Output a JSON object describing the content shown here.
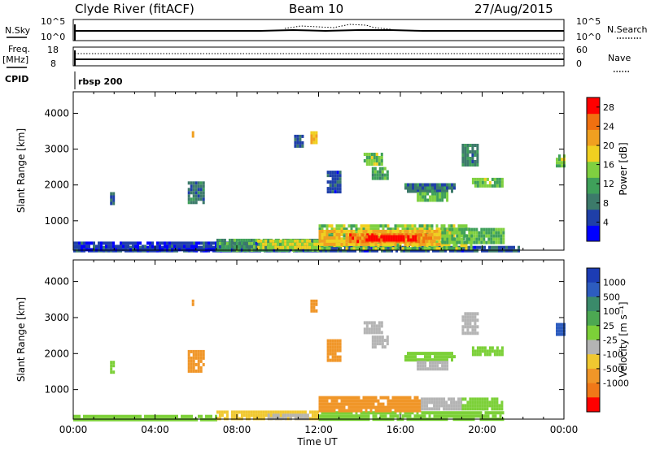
{
  "header": {
    "station": "Clyde River (fitACF)",
    "beam": "Beam 10",
    "date": "27/Aug/2015"
  },
  "panels": {
    "nsky_label": "N.Sky",
    "nsky_ticks": [
      "10^5",
      "10^0"
    ],
    "nsearch_label": "N.Search",
    "nsearch_ticks": [
      "10^5",
      "10^0"
    ],
    "freq_label": "Freq.",
    "freq_unit": "[MHz]",
    "freq_ticks": [
      "18",
      "8"
    ],
    "nave_label": "Nave",
    "nave_ticks": [
      "60",
      "0"
    ],
    "cpid_label": "CPID",
    "cpid_value": "rbsp 200"
  },
  "colors": {
    "power_scale": [
      "#0000ff",
      "#1f3fa8",
      "#3c7a6a",
      "#3fa05a",
      "#7fd040",
      "#f0d020",
      "#f0a020",
      "#f07010",
      "#ff0000"
    ],
    "velocity_scale": [
      "#1c3cb4",
      "#2d5cbf",
      "#3a8a6a",
      "#4ca852",
      "#7cd038",
      "#b4b4b4",
      "#f0c830",
      "#f09628",
      "#f07818",
      "#ff0000"
    ]
  },
  "chart_data": [
    {
      "type": "heatmap",
      "name": "power",
      "xlabel": "Time UT",
      "ylabel": "Slant Range [km]",
      "x_ticks": [
        "00:00",
        "04:00",
        "08:00",
        "12:00",
        "16:00",
        "20:00",
        "00:00"
      ],
      "x_range_hours": [
        0,
        24
      ],
      "y_ticks": [
        1000,
        2000,
        3000,
        4000
      ],
      "ylim": [
        180,
        4600
      ],
      "colorbar_label": "Power [dB]",
      "colorbar_ticks": [
        4,
        8,
        12,
        16,
        20,
        24,
        28
      ],
      "colorbar_range": [
        0,
        30
      ],
      "regions": [
        {
          "t0": 0.0,
          "t1": 21.8,
          "r0": 180,
          "r1": 300,
          "value": 6
        },
        {
          "t0": 0.0,
          "t1": 12.0,
          "r0": 180,
          "r1": 420,
          "value": 4
        },
        {
          "t0": 7.0,
          "t1": 12.0,
          "r0": 200,
          "r1": 500,
          "value": 11
        },
        {
          "t0": 9.0,
          "t1": 12.0,
          "r0": 220,
          "r1": 480,
          "value": 17
        },
        {
          "t0": 12.0,
          "t1": 19.5,
          "r0": 200,
          "r1": 900,
          "value": 15
        },
        {
          "t0": 12.0,
          "t1": 18.5,
          "r0": 350,
          "r1": 750,
          "value": 20
        },
        {
          "t0": 13.5,
          "t1": 17.5,
          "r0": 420,
          "r1": 650,
          "value": 24
        },
        {
          "t0": 14.3,
          "t1": 16.8,
          "r0": 470,
          "r1": 600,
          "value": 29
        },
        {
          "t0": 18.0,
          "t1": 21.0,
          "r0": 400,
          "r1": 800,
          "value": 13
        },
        {
          "t0": 1.8,
          "t1": 2.0,
          "r0": 1450,
          "r1": 1800,
          "value": 6
        },
        {
          "t0": 5.6,
          "t1": 6.4,
          "r0": 1550,
          "r1": 2100,
          "value": 8
        },
        {
          "t0": 5.8,
          "t1": 5.9,
          "r0": 3400,
          "r1": 3500,
          "value": 18
        },
        {
          "t0": 10.8,
          "t1": 11.2,
          "r0": 3100,
          "r1": 3400,
          "value": 6
        },
        {
          "t0": 11.6,
          "t1": 11.9,
          "r0": 3200,
          "r1": 3500,
          "value": 20
        },
        {
          "t0": 12.4,
          "t1": 13.0,
          "r0": 1800,
          "r1": 2400,
          "value": 6
        },
        {
          "t0": 14.2,
          "t1": 15.1,
          "r0": 2600,
          "r1": 2900,
          "value": 14
        },
        {
          "t0": 14.6,
          "t1": 15.4,
          "r0": 2150,
          "r1": 2500,
          "value": 12
        },
        {
          "t0": 16.2,
          "t1": 18.6,
          "r0": 1800,
          "r1": 2050,
          "value": 8
        },
        {
          "t0": 16.8,
          "t1": 18.3,
          "r0": 1600,
          "r1": 1800,
          "value": 13
        },
        {
          "t0": 19.0,
          "t1": 19.8,
          "r0": 2600,
          "r1": 3150,
          "value": 9
        },
        {
          "t0": 19.5,
          "t1": 21.0,
          "r0": 2000,
          "r1": 2200,
          "value": 14
        },
        {
          "t0": 23.6,
          "t1": 24.0,
          "r0": 2500,
          "r1": 2850,
          "value": 14
        }
      ]
    },
    {
      "type": "heatmap",
      "name": "velocity",
      "xlabel": "Time UT",
      "ylabel": "Slant Range [km]",
      "x_ticks": [
        "00:00",
        "04:00",
        "08:00",
        "12:00",
        "16:00",
        "20:00",
        "00:00"
      ],
      "x_range_hours": [
        0,
        24
      ],
      "y_ticks": [
        1000,
        2000,
        3000,
        4000
      ],
      "ylim": [
        180,
        4600
      ],
      "colorbar_label": "Velocity [m s⁻¹]",
      "colorbar_ticks": [
        "1000",
        "500",
        "100",
        "25",
        "-25",
        "-100",
        "-500",
        "-1000"
      ],
      "regions": [
        {
          "t0": 0.0,
          "t1": 7.0,
          "r0": 180,
          "r1": 300,
          "value": 60
        },
        {
          "t0": 7.0,
          "t1": 12.0,
          "r0": 180,
          "r1": 420,
          "value": -60
        },
        {
          "t0": 9.5,
          "t1": 11.5,
          "r0": 180,
          "r1": 330,
          "value": 0
        },
        {
          "t0": 12.0,
          "t1": 21.0,
          "r0": 180,
          "r1": 400,
          "value": 60
        },
        {
          "t0": 12.0,
          "t1": 17.0,
          "r0": 430,
          "r1": 820,
          "value": -300
        },
        {
          "t0": 17.0,
          "t1": 19.0,
          "r0": 420,
          "r1": 780,
          "value": 0
        },
        {
          "t0": 19.0,
          "t1": 21.0,
          "r0": 420,
          "r1": 780,
          "value": 60
        },
        {
          "t0": 1.8,
          "t1": 2.0,
          "r0": 1450,
          "r1": 1800,
          "value": 60
        },
        {
          "t0": 5.6,
          "t1": 6.4,
          "r0": 1550,
          "r1": 2100,
          "value": -300
        },
        {
          "t0": 5.8,
          "t1": 5.9,
          "r0": 3400,
          "r1": 3500,
          "value": -300
        },
        {
          "t0": 11.6,
          "t1": 11.9,
          "r0": 3200,
          "r1": 3500,
          "value": -300
        },
        {
          "t0": 12.4,
          "t1": 13.0,
          "r0": 1800,
          "r1": 2400,
          "value": -300
        },
        {
          "t0": 14.2,
          "t1": 15.1,
          "r0": 2600,
          "r1": 2900,
          "value": 0
        },
        {
          "t0": 14.6,
          "t1": 15.4,
          "r0": 2150,
          "r1": 2500,
          "value": 0
        },
        {
          "t0": 16.2,
          "t1": 18.6,
          "r0": 1800,
          "r1": 2050,
          "value": 60
        },
        {
          "t0": 16.8,
          "t1": 18.3,
          "r0": 1600,
          "r1": 1800,
          "value": 0
        },
        {
          "t0": 19.0,
          "t1": 19.8,
          "r0": 2600,
          "r1": 3150,
          "value": 0
        },
        {
          "t0": 19.5,
          "t1": 21.0,
          "r0": 2000,
          "r1": 2200,
          "value": 60
        },
        {
          "t0": 23.6,
          "t1": 24.0,
          "r0": 2500,
          "r1": 2850,
          "value": 700
        }
      ]
    }
  ]
}
